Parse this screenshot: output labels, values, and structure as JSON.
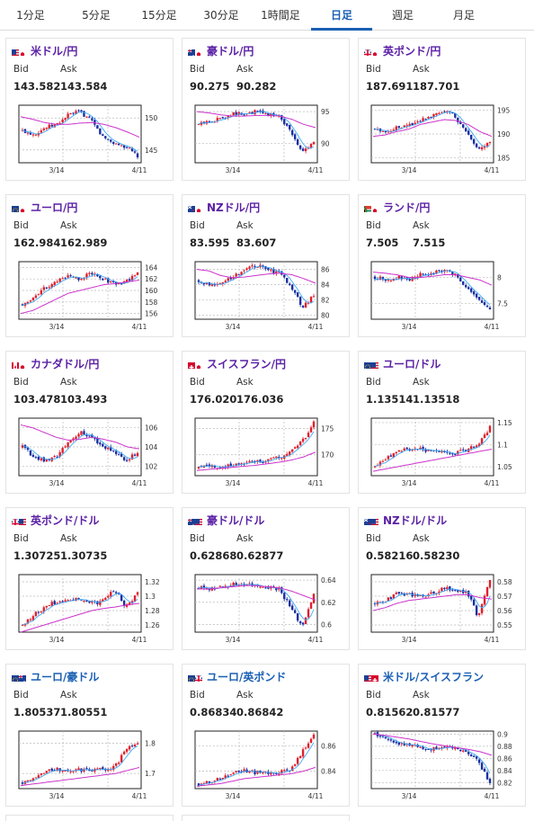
{
  "tabs": [
    {
      "label": "1分足"
    },
    {
      "label": "5分足"
    },
    {
      "label": "15分足"
    },
    {
      "label": "30分足"
    },
    {
      "label": "1時間足"
    },
    {
      "label": "日足",
      "active": true
    },
    {
      "label": "週足"
    },
    {
      "label": "月足"
    }
  ],
  "bid_label": "Bid",
  "ask_label": "Ask",
  "x_ticks": [
    "3/14",
    "4/11"
  ],
  "colors": {
    "up": "#e0202c",
    "down": "#1a2fa0",
    "ma_short": "#3fa9f5",
    "ma_long": "#cc33cc",
    "grid": "#bbbbbb"
  },
  "cards": [
    {
      "pair": "米ドル/円",
      "flag": [
        "us",
        "jp"
      ],
      "bid": "143.582",
      "ask": "143.584",
      "yticks": [
        "150",
        "145"
      ],
      "ymin": 143,
      "ymax": 152,
      "path": [
        148,
        147.5,
        148.5,
        149,
        150.5,
        151,
        149.5,
        147,
        146,
        145.5,
        144
      ],
      "ma": [
        150.2,
        149.8,
        149.3,
        149,
        149,
        149.2,
        149.3,
        149,
        148.5,
        147.8,
        147
      ]
    },
    {
      "pair": "豪ドル/円",
      "flag": [
        "au",
        "jp"
      ],
      "bid": "90.275",
      "ask": "90.282",
      "yticks": [
        "95",
        "90"
      ],
      "ymin": 87,
      "ymax": 96,
      "path": [
        93,
        93.5,
        94,
        94.8,
        94.5,
        95,
        94.6,
        94.3,
        92,
        88.5,
        90.5
      ],
      "ma": [
        95,
        94.8,
        94.5,
        94.3,
        94.3,
        94.4,
        94.4,
        94.3,
        93.8,
        93,
        92.5
      ]
    },
    {
      "pair": "英ポンド/円",
      "flag": [
        "gb",
        "jp"
      ],
      "bid": "187.691",
      "ask": "187.701",
      "yticks": [
        "195",
        "190",
        "185"
      ],
      "ymin": 184,
      "ymax": 196,
      "path": [
        191,
        190.5,
        191.5,
        192,
        193,
        194,
        195,
        193.5,
        190,
        187,
        188
      ],
      "ma": [
        189.5,
        189.8,
        190.5,
        191,
        192,
        192.5,
        193,
        192.8,
        192,
        190.5,
        189.5
      ]
    },
    {
      "pair": "ユーロ/円",
      "flag": [
        "eu",
        "jp"
      ],
      "bid": "162.984",
      "ask": "162.989",
      "yticks": [
        "164",
        "162",
        "160",
        "158",
        "156"
      ],
      "ymin": 155,
      "ymax": 165,
      "path": [
        157.5,
        159,
        160.5,
        161.5,
        162.5,
        162,
        163,
        162,
        161,
        161.5,
        163
      ],
      "ma": [
        156,
        156.5,
        157.5,
        158.5,
        159.5,
        160,
        160.5,
        161,
        161.2,
        161.5,
        161.8
      ]
    },
    {
      "pair": "NZドル/円",
      "flag": [
        "nz",
        "jp"
      ],
      "bid": "83.595",
      "ask": "83.607",
      "yticks": [
        "86",
        "84",
        "82",
        "80"
      ],
      "ymin": 79.5,
      "ymax": 87,
      "path": [
        84.5,
        84,
        84.5,
        85,
        86,
        86.5,
        86,
        85.5,
        84,
        81,
        82.5
      ],
      "ma": [
        86,
        85.8,
        85.2,
        84.9,
        85,
        85.2,
        85.4,
        85.5,
        85.3,
        84.8,
        84.2
      ]
    },
    {
      "pair": "ランド/円",
      "flag": [
        "za",
        "jp"
      ],
      "bid": "7.505",
      "ask": "7.515",
      "yticks": [
        "8",
        "7.5"
      ],
      "ymin": 7.2,
      "ymax": 8.3,
      "path": [
        8.0,
        7.95,
        8.0,
        7.95,
        8.05,
        8.1,
        8.15,
        8.05,
        7.8,
        7.55,
        7.4
      ],
      "ma": [
        8.1,
        8.08,
        8.05,
        8.0,
        8.0,
        8.02,
        8.05,
        8.05,
        8.0,
        7.95,
        7.85
      ]
    },
    {
      "pair": "カナダドル/円",
      "flag": [
        "ca",
        "jp"
      ],
      "bid": "103.478",
      "ask": "103.493",
      "yticks": [
        "106",
        "104",
        "102"
      ],
      "ymin": 101,
      "ymax": 107,
      "path": [
        104,
        103,
        102.5,
        103,
        104.5,
        105.5,
        105,
        104,
        103.5,
        102.5,
        103.5
      ],
      "ma": [
        106.3,
        106,
        105.5,
        105,
        104.7,
        104.8,
        105,
        104.8,
        104.5,
        104,
        103.8
      ]
    },
    {
      "pair": "スイスフラン/円",
      "flag": [
        "ch",
        "jp"
      ],
      "bid": "176.020",
      "ask": "176.036",
      "yticks": [
        "175",
        "170"
      ],
      "ymin": 166,
      "ymax": 177,
      "path": [
        167.5,
        168,
        167.5,
        168.2,
        168.5,
        168.7,
        169,
        169.5,
        170.5,
        172.5,
        176
      ],
      "ma": [
        167,
        167.2,
        167.4,
        167.6,
        167.8,
        168,
        168.3,
        168.6,
        169,
        169.6,
        170.5
      ]
    },
    {
      "pair": "ユーロ/ドル",
      "flag": [
        "eu",
        "us"
      ],
      "bid": "1.13514",
      "ask": "1.13518",
      "yticks": [
        "1.15",
        "1.1",
        "1.05"
      ],
      "ymin": 1.03,
      "ymax": 1.16,
      "path": [
        1.05,
        1.07,
        1.085,
        1.09,
        1.09,
        1.085,
        1.08,
        1.08,
        1.09,
        1.1,
        1.14
      ],
      "ma": [
        1.04,
        1.045,
        1.05,
        1.055,
        1.06,
        1.065,
        1.07,
        1.075,
        1.08,
        1.085,
        1.09
      ]
    },
    {
      "pair": "英ポンド/ドル",
      "flag": [
        "gb",
        "us"
      ],
      "bid": "1.30725",
      "ask": "1.30735",
      "yticks": [
        "1.32",
        "1.3",
        "1.28",
        "1.26"
      ],
      "ymin": 1.25,
      "ymax": 1.33,
      "path": [
        1.26,
        1.275,
        1.285,
        1.293,
        1.295,
        1.295,
        1.29,
        1.293,
        1.31,
        1.285,
        1.305
      ],
      "ma": [
        1.25,
        1.255,
        1.26,
        1.265,
        1.27,
        1.275,
        1.28,
        1.283,
        1.285,
        1.288,
        1.29
      ]
    },
    {
      "pair": "豪ドル/ドル",
      "flag": [
        "au",
        "us"
      ],
      "bid": "0.62868",
      "ask": "0.62877",
      "yticks": [
        "0.64",
        "0.62",
        "0.6"
      ],
      "ymin": 0.593,
      "ymax": 0.645,
      "path": [
        0.633,
        0.632,
        0.634,
        0.636,
        0.637,
        0.635,
        0.634,
        0.632,
        0.615,
        0.598,
        0.628
      ],
      "ma": [
        0.632,
        0.632,
        0.633,
        0.634,
        0.635,
        0.635,
        0.634,
        0.633,
        0.63,
        0.626,
        0.622
      ]
    },
    {
      "pair": "NZドル/ドル",
      "flag": [
        "nz",
        "us"
      ],
      "bid": "0.58216",
      "ask": "0.58230",
      "yticks": [
        "0.58",
        "0.57",
        "0.56",
        "0.55"
      ],
      "ymin": 0.545,
      "ymax": 0.585,
      "path": [
        0.565,
        0.567,
        0.572,
        0.571,
        0.57,
        0.572,
        0.576,
        0.574,
        0.573,
        0.555,
        0.582
      ],
      "ma": [
        0.56,
        0.562,
        0.565,
        0.567,
        0.568,
        0.569,
        0.57,
        0.571,
        0.571,
        0.569,
        0.568
      ]
    },
    {
      "pair": "ユーロ/豪ドル",
      "flag": [
        "eu",
        "au"
      ],
      "bid": "1.80537",
      "ask": "1.80551",
      "yticks": [
        "1.8",
        "1.7"
      ],
      "ymin": 1.65,
      "ymax": 1.84,
      "path": [
        1.67,
        1.69,
        1.71,
        1.715,
        1.71,
        1.712,
        1.71,
        1.715,
        1.72,
        1.78,
        1.805
      ],
      "ma": [
        1.66,
        1.665,
        1.67,
        1.675,
        1.68,
        1.685,
        1.69,
        1.695,
        1.7,
        1.71,
        1.72
      ]
    },
    {
      "pair": "ユーロ/英ポンド",
      "flag": [
        "eu",
        "gb"
      ],
      "bid": "0.86834",
      "ask": "0.86842",
      "yticks": [
        "0.86",
        "0.84"
      ],
      "ymin": 0.826,
      "ymax": 0.872,
      "path": [
        0.83,
        0.832,
        0.835,
        0.838,
        0.84,
        0.839,
        0.838,
        0.839,
        0.842,
        0.855,
        0.868
      ],
      "ma": [
        0.828,
        0.829,
        0.83,
        0.832,
        0.834,
        0.835,
        0.836,
        0.837,
        0.838,
        0.84,
        0.843
      ]
    },
    {
      "pair": "米ドル/スイスフラン",
      "flag": [
        "us",
        "ch"
      ],
      "bid": "0.81562",
      "ask": "0.81577",
      "yticks": [
        "0.9",
        "0.88",
        "0.86",
        "0.84",
        "0.82"
      ],
      "ymin": 0.81,
      "ymax": 0.905,
      "path": [
        0.9,
        0.895,
        0.885,
        0.88,
        0.878,
        0.876,
        0.878,
        0.875,
        0.872,
        0.855,
        0.818
      ],
      "ma": [
        0.9,
        0.898,
        0.895,
        0.892,
        0.888,
        0.884,
        0.881,
        0.878,
        0.875,
        0.871,
        0.865
      ]
    }
  ]
}
